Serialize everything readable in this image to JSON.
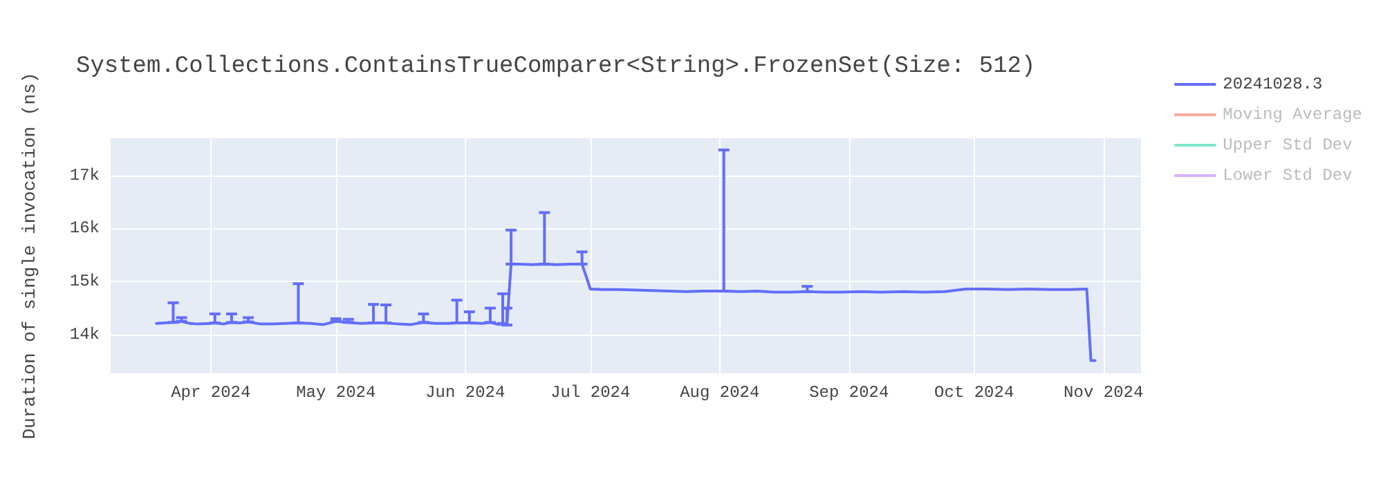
{
  "chart_data": {
    "type": "line",
    "title": "System.Collections.ContainsTrueComparer<String>.FrozenSet(Size: 512)",
    "ylabel": "Duration of single invocation (ns)",
    "x": [
      "2024-03-19",
      "2024-03-21",
      "2024-03-23",
      "2024-03-25",
      "2024-03-27",
      "2024-03-29",
      "2024-04-01",
      "2024-04-02",
      "2024-04-04",
      "2024-04-06",
      "2024-04-08",
      "2024-04-10",
      "2024-04-13",
      "2024-04-16",
      "2024-04-19",
      "2024-04-22",
      "2024-04-25",
      "2024-04-28",
      "2024-05-01",
      "2024-05-04",
      "2024-05-07",
      "2024-05-10",
      "2024-05-13",
      "2024-05-16",
      "2024-05-19",
      "2024-05-22",
      "2024-05-25",
      "2024-05-28",
      "2024-05-30",
      "2024-06-02",
      "2024-06-05",
      "2024-06-07",
      "2024-06-09",
      "2024-06-10",
      "2024-06-11",
      "2024-06-12",
      "2024-06-14",
      "2024-06-17",
      "2024-06-20",
      "2024-06-23",
      "2024-06-26",
      "2024-06-29",
      "2024-07-01",
      "2024-07-04",
      "2024-07-08",
      "2024-07-12",
      "2024-07-16",
      "2024-07-20",
      "2024-07-24",
      "2024-07-28",
      "2024-08-02",
      "2024-08-06",
      "2024-08-10",
      "2024-08-14",
      "2024-08-18",
      "2024-08-22",
      "2024-08-26",
      "2024-08-30",
      "2024-09-04",
      "2024-09-09",
      "2024-09-14",
      "2024-09-19",
      "2024-09-24",
      "2024-09-29",
      "2024-10-04",
      "2024-10-09",
      "2024-10-14",
      "2024-10-19",
      "2024-10-24",
      "2024-10-28",
      "2024-10-29",
      "2024-10-30"
    ],
    "series": [
      {
        "name": "20241028.3",
        "color": "#636efa",
        "values": [
          14210,
          14220,
          14230,
          14250,
          14210,
          14200,
          14210,
          14220,
          14200,
          14230,
          14220,
          14240,
          14200,
          14200,
          14210,
          14220,
          14210,
          14190,
          14250,
          14230,
          14210,
          14220,
          14220,
          14200,
          14190,
          14230,
          14210,
          14210,
          14220,
          14220,
          14210,
          14230,
          14190,
          14210,
          14180,
          15330,
          15330,
          15320,
          15330,
          15320,
          15330,
          15330,
          14860,
          14850,
          14850,
          14840,
          14830,
          14820,
          14810,
          14820,
          14820,
          14810,
          14820,
          14800,
          14800,
          14810,
          14800,
          14800,
          14810,
          14800,
          14810,
          14800,
          14810,
          14860,
          14860,
          14850,
          14860,
          14850,
          14850,
          14860,
          13510,
          13510
        ],
        "errors": [
          null,
          null,
          [
            14230,
            14600
          ],
          [
            14250,
            14320
          ],
          null,
          null,
          null,
          [
            14220,
            14390
          ],
          null,
          [
            14230,
            14390
          ],
          null,
          [
            14240,
            14320
          ],
          null,
          null,
          null,
          [
            14220,
            14960
          ],
          null,
          null,
          [
            14250,
            14300
          ],
          [
            14230,
            14290
          ],
          null,
          [
            14220,
            14570
          ],
          [
            14220,
            14560
          ],
          null,
          null,
          [
            14230,
            14390
          ],
          null,
          null,
          [
            14220,
            14650
          ],
          [
            14220,
            14430
          ],
          null,
          [
            14230,
            14500
          ],
          null,
          [
            14210,
            14770
          ],
          [
            14180,
            14500
          ],
          [
            15330,
            15970
          ],
          null,
          null,
          [
            15330,
            16300
          ],
          null,
          null,
          [
            15330,
            15560
          ],
          null,
          null,
          null,
          null,
          null,
          null,
          null,
          null,
          [
            14820,
            17480
          ],
          null,
          null,
          null,
          null,
          [
            14810,
            14910
          ],
          null,
          null,
          null,
          null,
          null,
          null,
          null,
          null,
          null,
          null,
          null,
          null,
          null,
          null,
          null,
          null
        ]
      },
      {
        "name": "Moving Average",
        "color": "#ef553b",
        "values": [
          null,
          null,
          null,
          null,
          null,
          null,
          null,
          null,
          null,
          null,
          null,
          null,
          null,
          null,
          null,
          null,
          null,
          null,
          null,
          null,
          null,
          null,
          null,
          null,
          null,
          null,
          null,
          null,
          null,
          null,
          null,
          null,
          null,
          null,
          null,
          null,
          null,
          null,
          null,
          null,
          null,
          null,
          null,
          null,
          null,
          null,
          null,
          null,
          null,
          null,
          null,
          null,
          null,
          null,
          null,
          null,
          null,
          null,
          null,
          null,
          null,
          null,
          null,
          null,
          null,
          null,
          null,
          null,
          null,
          null,
          null,
          null
        ]
      },
      {
        "name": "Upper Std Dev",
        "color": "#00cc96",
        "values": [
          null,
          null,
          null,
          null,
          null,
          null,
          null,
          null,
          null,
          null,
          null,
          null,
          null,
          null,
          null,
          null,
          null,
          null,
          null,
          null,
          null,
          null,
          null,
          null,
          null,
          null,
          null,
          null,
          null,
          null,
          null,
          null,
          null,
          null,
          null,
          null,
          null,
          null,
          null,
          null,
          null,
          null,
          null,
          null,
          null,
          null,
          null,
          null,
          null,
          null,
          null,
          null,
          null,
          null,
          null,
          null,
          null,
          null,
          null,
          null,
          null,
          null,
          null,
          null,
          null,
          null,
          null,
          null,
          null,
          null,
          null,
          null
        ]
      },
      {
        "name": "Lower Std Dev",
        "color": "#ab63fa",
        "values": [
          null,
          null,
          null,
          null,
          null,
          null,
          null,
          null,
          null,
          null,
          null,
          null,
          null,
          null,
          null,
          null,
          null,
          null,
          null,
          null,
          null,
          null,
          null,
          null,
          null,
          null,
          null,
          null,
          null,
          null,
          null,
          null,
          null,
          null,
          null,
          null,
          null,
          null,
          null,
          null,
          null,
          null,
          null,
          null,
          null,
          null,
          null,
          null,
          null,
          null,
          null,
          null,
          null,
          null,
          null,
          null,
          null,
          null,
          null,
          null,
          null,
          null,
          null,
          null,
          null,
          null,
          null,
          null,
          null,
          null,
          null,
          null
        ]
      }
    ],
    "xlim": [
      "2024-03-08",
      "2024-11-10"
    ],
    "xticks": [
      {
        "value": "2024-04-01",
        "label": "Apr 2024"
      },
      {
        "value": "2024-05-01",
        "label": "May 2024"
      },
      {
        "value": "2024-06-01",
        "label": "Jun 2024"
      },
      {
        "value": "2024-07-01",
        "label": "Jul 2024"
      },
      {
        "value": "2024-08-01",
        "label": "Aug 2024"
      },
      {
        "value": "2024-09-01",
        "label": "Sep 2024"
      },
      {
        "value": "2024-10-01",
        "label": "Oct 2024"
      },
      {
        "value": "2024-11-01",
        "label": "Nov 2024"
      }
    ],
    "ylim": [
      13270,
      17700
    ],
    "yticks": [
      {
        "value": 14000,
        "label": "14k"
      },
      {
        "value": 15000,
        "label": "15k"
      },
      {
        "value": 16000,
        "label": "16k"
      },
      {
        "value": 17000,
        "label": "17k"
      }
    ],
    "grid": true,
    "legend": "top right",
    "marker": "none",
    "line_style": "solid"
  }
}
